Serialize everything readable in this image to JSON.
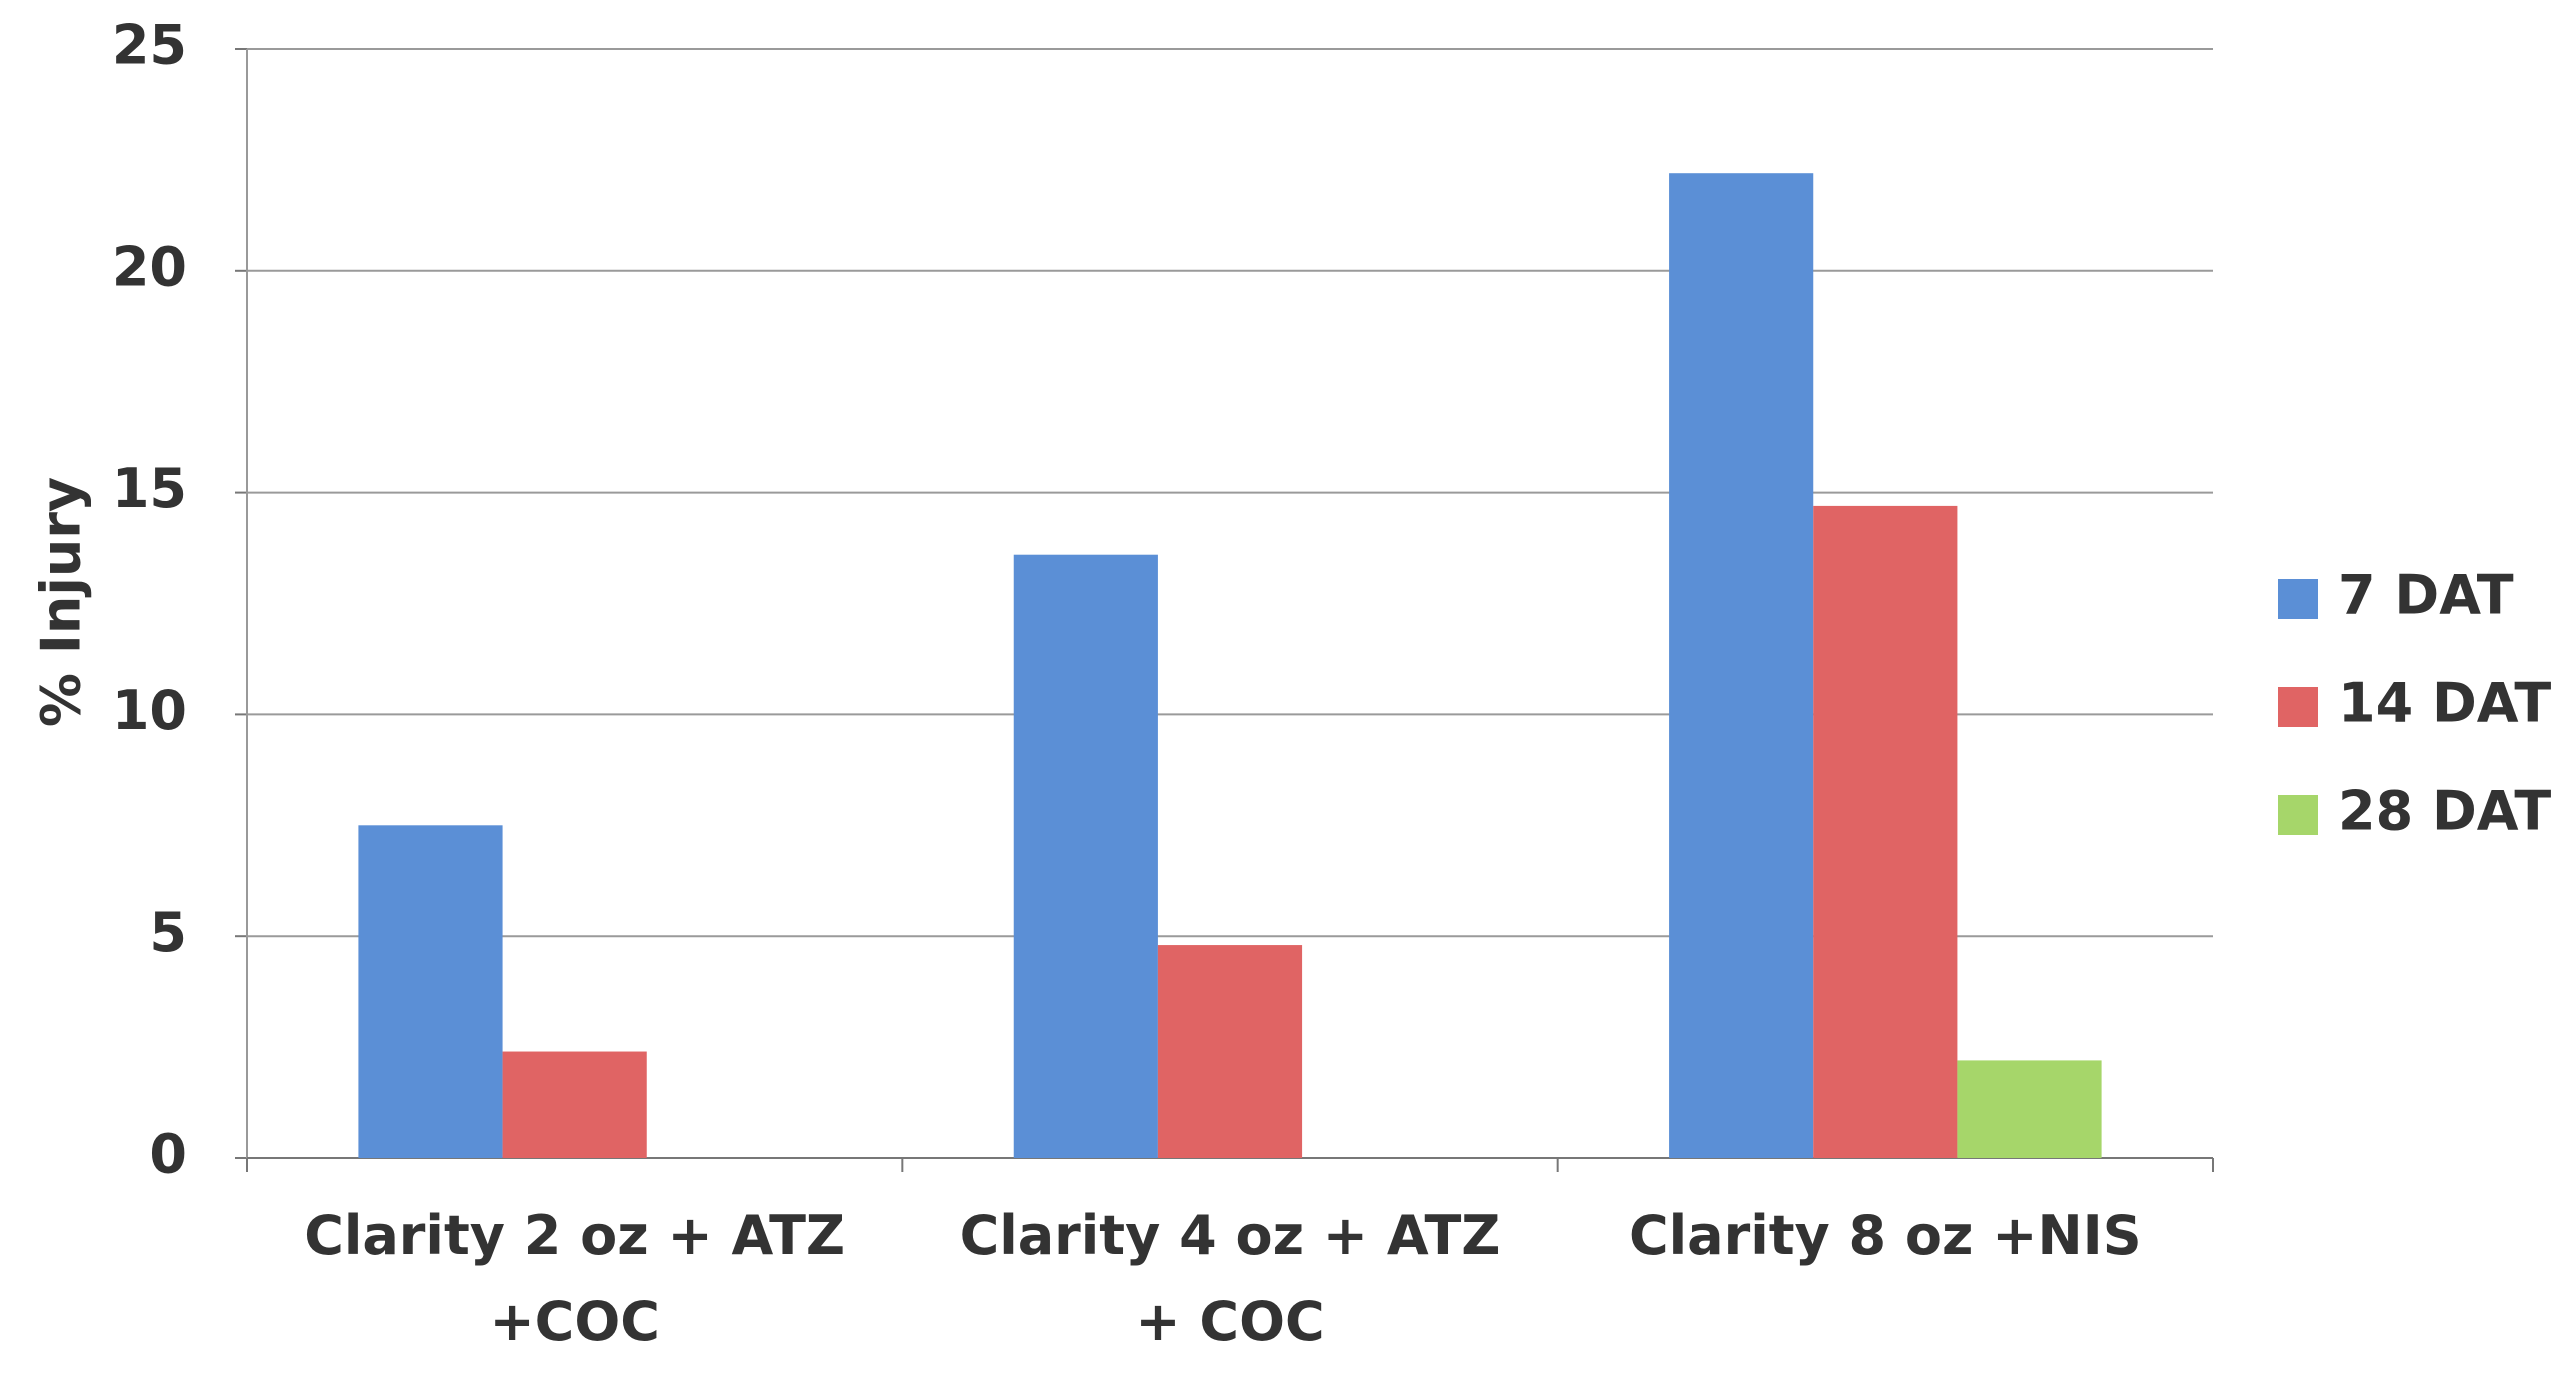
{
  "chart_data": {
    "type": "bar",
    "y_label": "% Injury",
    "categories": [
      "Clarity 2 oz + ATZ +COC",
      "Clarity 4 oz + ATZ + COC",
      "Clarity 8 oz +NIS"
    ],
    "series": [
      {
        "name": "7 DAT",
        "color": "#5b8fd6",
        "values": [
          7.5,
          13.6,
          22.2
        ]
      },
      {
        "name": "14 DAT",
        "color": "#e06464",
        "values": [
          2.4,
          4.8,
          14.7
        ]
      },
      {
        "name": "28 DAT",
        "color": "#a6d66a",
        "values": [
          0,
          0,
          2.2
        ]
      }
    ],
    "ylim": [
      0,
      25
    ],
    "yticks": [
      0,
      5,
      10,
      15,
      20,
      25
    ],
    "grid": true,
    "legend": "right"
  }
}
